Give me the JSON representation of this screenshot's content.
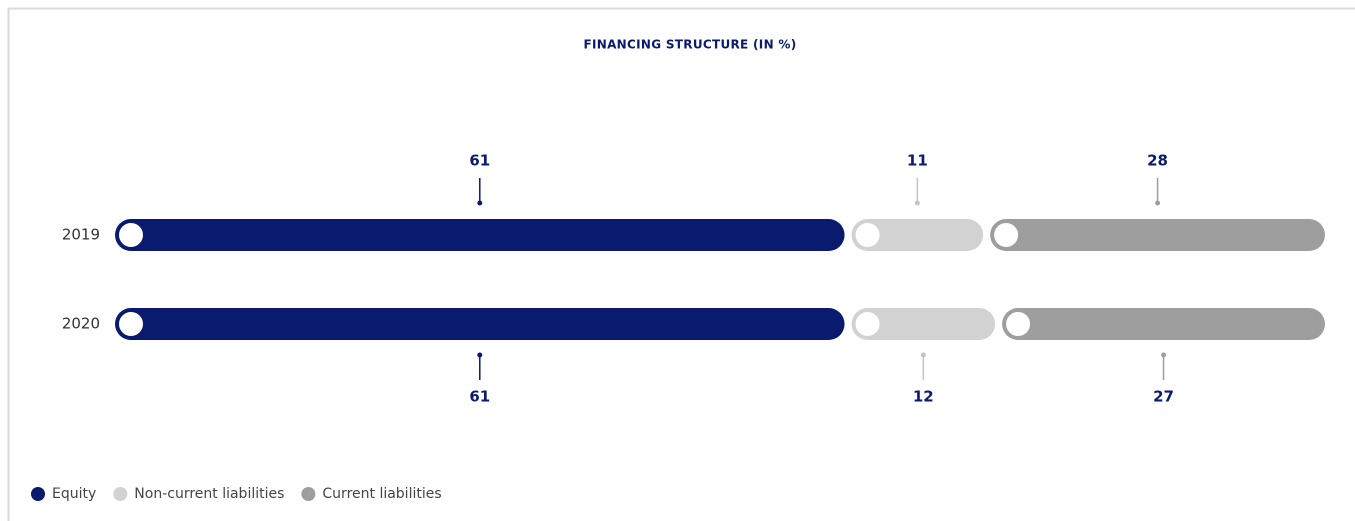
{
  "chart_data": {
    "type": "stacked-bar",
    "orientation": "horizontal",
    "title": "FINANCING STRUCTURE (IN %)",
    "categories": [
      "2019",
      "2020"
    ],
    "series": [
      {
        "name": "Equity",
        "color": "#0a1a6e",
        "values": [
          61,
          61
        ]
      },
      {
        "name": "Non-current liabilities",
        "color": "#d2d2d2",
        "values": [
          11,
          12
        ]
      },
      {
        "name": "Current liabilities",
        "color": "#9e9e9e",
        "values": [
          28,
          27
        ]
      }
    ],
    "legend": "bottom-left"
  }
}
